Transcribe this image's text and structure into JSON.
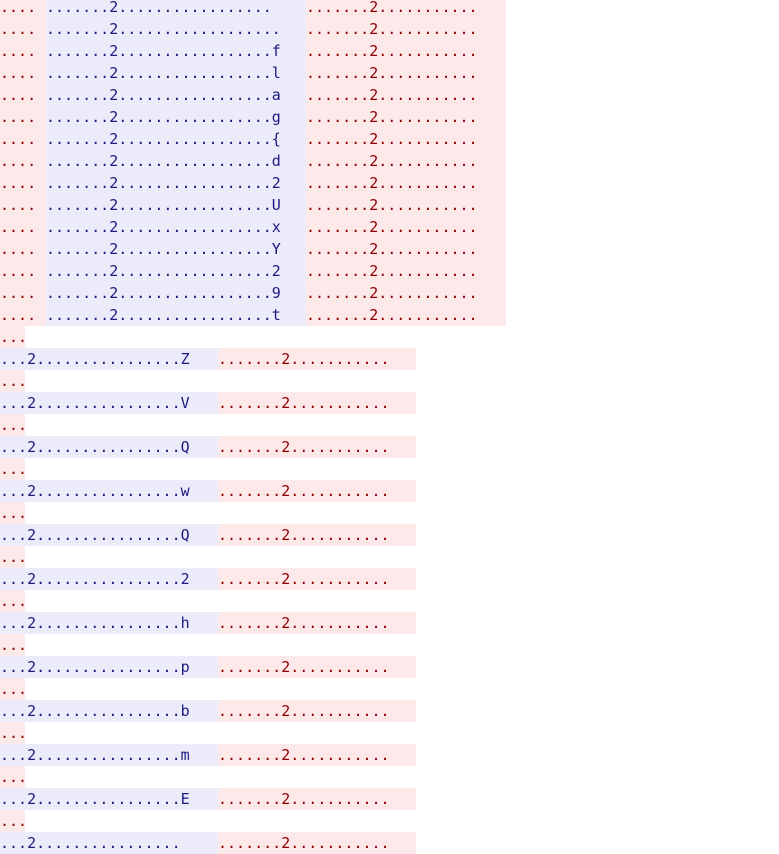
{
  "block_top": {
    "rows": [
      {
        "left": "....",
        "blue": ".......2.................",
        "mid": "",
        "right": ".......2..........."
      },
      {
        "left": "....",
        "blue": ".......2.................",
        "mid": ".",
        "right": ".......2..........."
      },
      {
        "left": "....",
        "blue": ".......2.................",
        "mid": "f",
        "right": ".......2..........."
      },
      {
        "left": "....",
        "blue": ".......2.................",
        "mid": "l",
        "right": ".......2..........."
      },
      {
        "left": "....",
        "blue": ".......2.................",
        "mid": "a",
        "right": ".......2..........."
      },
      {
        "left": "....",
        "blue": ".......2.................",
        "mid": "g",
        "right": ".......2..........."
      },
      {
        "left": "....",
        "blue": ".......2.................",
        "mid": "{",
        "right": ".......2..........."
      },
      {
        "left": "....",
        "blue": ".......2.................",
        "mid": "d",
        "right": ".......2..........."
      },
      {
        "left": "....",
        "blue": ".......2.................",
        "mid": "2",
        "right": ".......2..........."
      },
      {
        "left": "....",
        "blue": ".......2.................",
        "mid": "U",
        "right": ".......2..........."
      },
      {
        "left": "....",
        "blue": ".......2.................",
        "mid": "x",
        "right": ".......2..........."
      },
      {
        "left": "....",
        "blue": ".......2.................",
        "mid": "Y",
        "right": ".......2..........."
      },
      {
        "left": "....",
        "blue": ".......2.................",
        "mid": "2",
        "right": ".......2..........."
      },
      {
        "left": "....",
        "blue": ".......2.................",
        "mid": "9",
        "right": ".......2..........."
      },
      {
        "left": "....",
        "blue": ".......2.................",
        "mid": "t",
        "right": ".......2..........."
      }
    ]
  },
  "block_bottom": {
    "separator": "...",
    "rows": [
      {
        "blue": "...2................",
        "mid": "Z",
        "right": ".......2..........."
      },
      {
        "blue": "...2................",
        "mid": "V",
        "right": ".......2..........."
      },
      {
        "blue": "...2................",
        "mid": "Q",
        "right": ".......2..........."
      },
      {
        "blue": "...2................",
        "mid": "w",
        "right": ".......2..........."
      },
      {
        "blue": "...2................",
        "mid": "Q",
        "right": ".......2..........."
      },
      {
        "blue": "...2................",
        "mid": "2",
        "right": ".......2..........."
      },
      {
        "blue": "...2................",
        "mid": "h",
        "right": ".......2..........."
      },
      {
        "blue": "...2................",
        "mid": "p",
        "right": ".......2..........."
      },
      {
        "blue": "...2................",
        "mid": "b",
        "right": ".......2..........."
      },
      {
        "blue": "...2................",
        "mid": "m",
        "right": ".......2..........."
      },
      {
        "blue": "...2................",
        "mid": "E",
        "right": ".......2..........."
      },
      {
        "blue": "...2................",
        "mid": "",
        "right": ".......2..........."
      }
    ]
  }
}
